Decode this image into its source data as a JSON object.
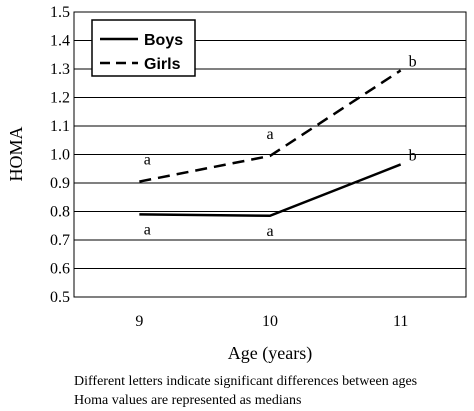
{
  "chart_data": {
    "type": "line",
    "categories": [
      "9",
      "10",
      "11"
    ],
    "xlabel": "Age (years)",
    "ylabel": "HOMA",
    "ylim": [
      0.5,
      1.5
    ],
    "yticks": [
      "0.5",
      "0.6",
      "0.7",
      "0.8",
      "0.9",
      "1.0",
      "1.1",
      "1.2",
      "1.3",
      "1.4",
      "1.5"
    ],
    "grid": true,
    "legend_position": "top-left",
    "series": [
      {
        "name": "Boys",
        "style": "solid",
        "values": [
          0.79,
          0.785,
          0.965
        ],
        "labels": [
          "a",
          "a",
          "b"
        ]
      },
      {
        "name": "Girls",
        "style": "dashed",
        "values": [
          0.905,
          0.995,
          1.295
        ],
        "labels": [
          "a",
          "a",
          "b"
        ]
      }
    ]
  },
  "notes": [
    "Different letters indicate significant differences between ages",
    "Homa values are represented as medians"
  ]
}
